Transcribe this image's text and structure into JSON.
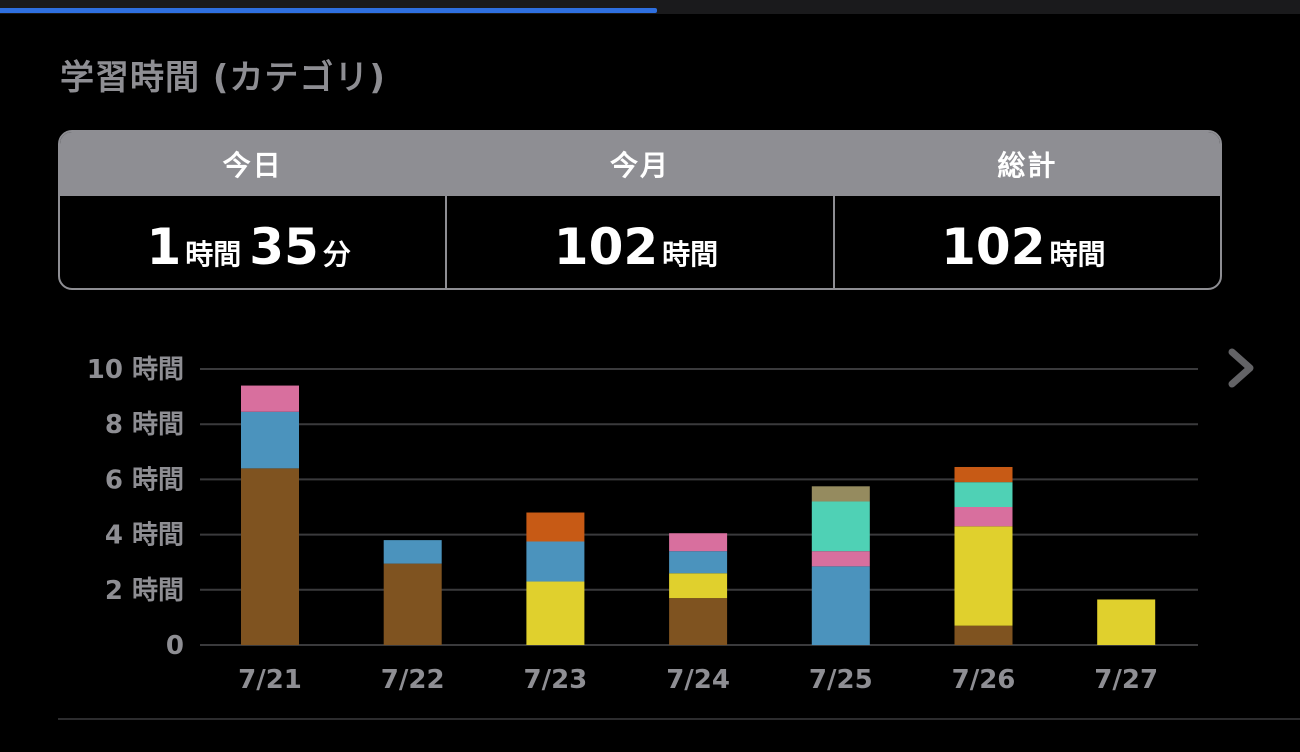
{
  "header": {
    "progress_fraction": 0.505
  },
  "page_title": "学習時間 (カテゴリ)",
  "summary": {
    "today": {
      "label": "今日",
      "hours": "1",
      "hours_unit": "時間",
      "minutes": "35",
      "minutes_unit": "分"
    },
    "month": {
      "label": "今月",
      "value": "102",
      "unit": "時間"
    },
    "total": {
      "label": "総計",
      "value": "102",
      "unit": "時間"
    }
  },
  "nav": {
    "next_icon": "chevron-right-icon"
  },
  "chart_data": {
    "type": "bar",
    "stacked": true,
    "categories": [
      "7/21",
      "7/22",
      "7/23",
      "7/24",
      "7/25",
      "7/26",
      "7/27"
    ],
    "y_tick_labels": [
      "0",
      "2 時間",
      "4 時間",
      "6 時間",
      "8 時間",
      "10 時間"
    ],
    "y_ticks": [
      0,
      2,
      4,
      6,
      8,
      10
    ],
    "ylim": [
      0,
      10
    ],
    "grid": true,
    "series": [
      {
        "color": "#7f5320",
        "values": [
          6.4,
          2.95,
          0,
          1.7,
          0,
          0.7,
          0
        ]
      },
      {
        "color": "#e0d02d",
        "values": [
          0,
          0,
          2.3,
          0.9,
          0,
          3.6,
          1.65
        ]
      },
      {
        "color": "#4b93bd",
        "values": [
          2.05,
          0.85,
          1.45,
          0.8,
          2.85,
          0,
          0
        ]
      },
      {
        "color": "#d86f9e",
        "values": [
          0.95,
          0,
          0,
          0.65,
          0.55,
          0.7,
          0
        ]
      },
      {
        "color": "#4fd1b5",
        "values": [
          0,
          0,
          0,
          0,
          1.8,
          0.9,
          0
        ]
      },
      {
        "color": "#958b5f",
        "values": [
          0,
          0,
          0,
          0,
          0.55,
          0,
          0
        ]
      },
      {
        "color": "#c75a15",
        "values": [
          0,
          0,
          1.05,
          0,
          0,
          0.55,
          0
        ]
      }
    ]
  }
}
